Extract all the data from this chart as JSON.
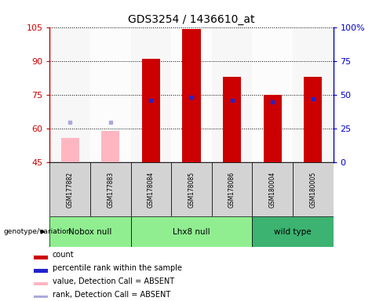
{
  "title": "GDS3254 / 1436610_at",
  "samples": [
    "GSM177882",
    "GSM177883",
    "GSM178084",
    "GSM178085",
    "GSM178086",
    "GSM180004",
    "GSM180005"
  ],
  "count_values": [
    null,
    null,
    91,
    104,
    83,
    75,
    83
  ],
  "count_absent": [
    56,
    59,
    null,
    null,
    null,
    null,
    null
  ],
  "percentile_rank": [
    null,
    null,
    46,
    48,
    46,
    45,
    47
  ],
  "rank_absent": [
    30,
    30,
    null,
    null,
    null,
    null,
    null
  ],
  "ylim_left": [
    45,
    105
  ],
  "ylim_right": [
    0,
    100
  ],
  "yticks_left": [
    45,
    60,
    75,
    90,
    105
  ],
  "yticks_right": [
    0,
    25,
    50,
    75,
    100
  ],
  "ytick_right_labels": [
    "0",
    "25",
    "50",
    "75",
    "100%"
  ],
  "bar_width": 0.45,
  "count_color": "#CC0000",
  "count_absent_color": "#FFB6C1",
  "rank_color": "#2222CC",
  "rank_absent_color": "#AAAADD",
  "bg_color": "#FFFFFF",
  "axis_left_color": "#CC0000",
  "axis_right_color": "#0000CC",
  "group_defs": [
    {
      "start": 0,
      "end": 1,
      "name": "Nobox null",
      "color": "#90EE90"
    },
    {
      "start": 2,
      "end": 4,
      "name": "Lhx8 null",
      "color": "#90EE90"
    },
    {
      "start": 5,
      "end": 6,
      "name": "wild type",
      "color": "#3CB371"
    }
  ],
  "legend_items": [
    {
      "label": "count",
      "color": "#CC0000"
    },
    {
      "label": "percentile rank within the sample",
      "color": "#2222CC"
    },
    {
      "label": "value, Detection Call = ABSENT",
      "color": "#FFB6C1"
    },
    {
      "label": "rank, Detection Call = ABSENT",
      "color": "#AAAADD"
    }
  ]
}
